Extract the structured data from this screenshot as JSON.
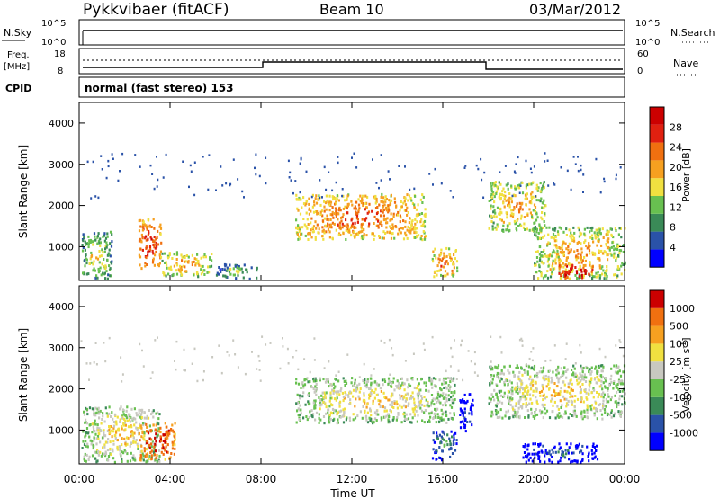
{
  "header": {
    "station": "Pykkvibaer (fitACF)",
    "beam": "Beam 10",
    "date": "03/Mar/2012"
  },
  "status_panels": {
    "nsky_label": "N.Sky",
    "nsky_ticks": [
      "10^5",
      "10^0"
    ],
    "nsearch_label": "N.Search",
    "nsearch_ticks": [
      "10^5",
      "10^0"
    ],
    "freq_label": "Freq.",
    "freq_unit": "[MHz]",
    "freq_ticks": [
      "18",
      "8"
    ],
    "nave_label": "Nave",
    "nave_ticks": [
      "60",
      "0"
    ],
    "cpid_label": "CPID",
    "cpid_text": "normal (fast stereo) 153"
  },
  "chart_data": [
    {
      "type": "heatmap",
      "panel": "power",
      "ylabel": "Slant Range [km]",
      "yticks": [
        "4000",
        "3000",
        "2000",
        "1000"
      ],
      "ylim": [
        180,
        4500
      ],
      "colorbar_label": "Power [dB]",
      "colorbar_ticks": [
        "28",
        "24",
        "20",
        "16",
        "12",
        "8",
        "4"
      ],
      "colors": [
        "#0000ff",
        "#2a52a8",
        "#3a8a57",
        "#68c050",
        "#f0e040",
        "#f6a020",
        "#f07010",
        "#e02010",
        "#cc0000"
      ],
      "blobs": [
        {
          "t0": 0.1,
          "t1": 1.4,
          "r0": 250,
          "r1": 1400,
          "level": 3
        },
        {
          "t0": 2.6,
          "t1": 3.6,
          "r0": 500,
          "r1": 1700,
          "level": 6
        },
        {
          "t0": 3.6,
          "t1": 5.8,
          "r0": 300,
          "r1": 900,
          "level": 4
        },
        {
          "t0": 6.0,
          "t1": 7.8,
          "r0": 250,
          "r1": 600,
          "level": 2
        },
        {
          "t0": 9.5,
          "t1": 15.2,
          "r0": 1200,
          "r1": 2300,
          "level": 5
        },
        {
          "t0": 15.5,
          "t1": 16.6,
          "r0": 300,
          "r1": 1000,
          "level": 5
        },
        {
          "t0": 18.0,
          "t1": 20.5,
          "r0": 1400,
          "r1": 2600,
          "level": 4
        },
        {
          "t0": 20.0,
          "t1": 24.0,
          "r0": 250,
          "r1": 1500,
          "level": 4
        },
        {
          "t0": 21.0,
          "t1": 22.6,
          "r0": 250,
          "r1": 600,
          "level": 7
        }
      ]
    },
    {
      "type": "heatmap",
      "panel": "velocity",
      "ylabel": "Slant Range [km]",
      "yticks": [
        "4000",
        "3000",
        "2000",
        "1000"
      ],
      "ylim": [
        180,
        4500
      ],
      "colorbar_label": "Velocity [m s",
      "colorbar_superscript": "-1",
      "colorbar_ticks": [
        "1000",
        "500",
        "100",
        "25",
        "-25",
        "-100",
        "-500",
        "-1000"
      ],
      "colors": [
        "#0000ff",
        "#2a52a8",
        "#3a8a57",
        "#68c050",
        "#c8c8c0",
        "#f0e040",
        "#f6a020",
        "#f07010",
        "#cc0000"
      ],
      "blobs": [
        {
          "t0": 0.1,
          "t1": 3.5,
          "r0": 250,
          "r1": 1600,
          "level": 4
        },
        {
          "t0": 2.6,
          "t1": 4.2,
          "r0": 300,
          "r1": 1200,
          "level": 7
        },
        {
          "t0": 9.5,
          "t1": 16.5,
          "r0": 1200,
          "r1": 2300,
          "level": 4
        },
        {
          "t0": 15.5,
          "t1": 16.6,
          "r0": 300,
          "r1": 1000,
          "level": 1
        },
        {
          "t0": 16.7,
          "t1": 17.3,
          "r0": 1000,
          "r1": 1900,
          "level": 0
        },
        {
          "t0": 18.0,
          "t1": 24.0,
          "r0": 1300,
          "r1": 2600,
          "level": 4
        },
        {
          "t0": 19.5,
          "t1": 22.8,
          "r0": 250,
          "r1": 700,
          "level": 0
        }
      ]
    }
  ],
  "x_axis": {
    "label": "Time UT",
    "ticks": [
      "00:00",
      "04:00",
      "08:00",
      "12:00",
      "16:00",
      "20:00",
      "00:00"
    ]
  }
}
